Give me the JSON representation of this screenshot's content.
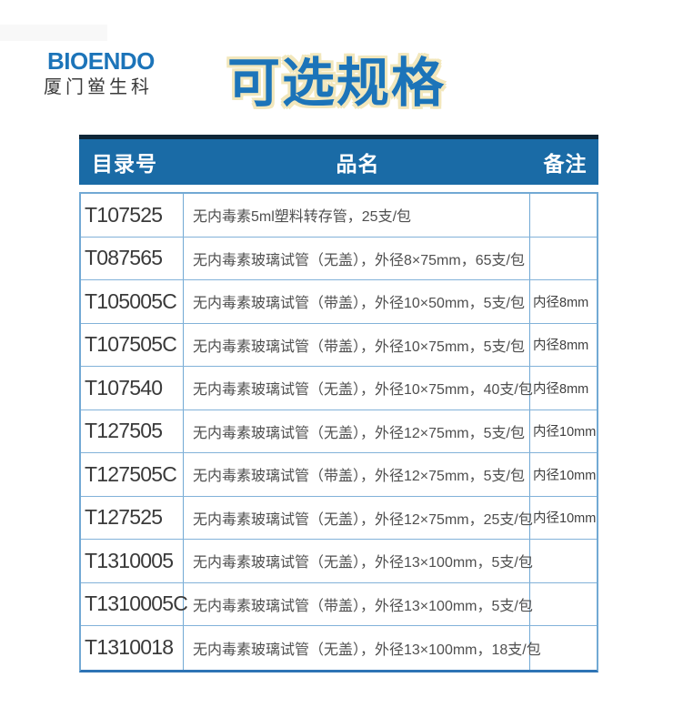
{
  "logo": {
    "brand": "BIOENDO",
    "subtitle": "厦门鲎生科"
  },
  "title": "可选规格",
  "table": {
    "headers": {
      "catalog": "目录号",
      "name": "品名",
      "remark": "备注"
    },
    "rows": [
      {
        "catalog": "T107525",
        "name": "无内毒素5ml塑料转存管，25支/包",
        "remark": ""
      },
      {
        "catalog": "T087565",
        "name": "无内毒素玻璃试管（无盖），外径8×75mm，65支/包",
        "remark": ""
      },
      {
        "catalog": "T105005C",
        "name": "无内毒素玻璃试管（带盖），外径10×50mm，5支/包",
        "remark": "内径8mm"
      },
      {
        "catalog": "T107505C",
        "name": "无内毒素玻璃试管（带盖），外径10×75mm，5支/包",
        "remark": "内径8mm"
      },
      {
        "catalog": "T107540",
        "name": "无内毒素玻璃试管（无盖），外径10×75mm，40支/包",
        "remark": "内径8mm"
      },
      {
        "catalog": "T127505",
        "name": "无内毒素玻璃试管（无盖），外径12×75mm，5支/包",
        "remark": "内径10mm"
      },
      {
        "catalog": "T127505C",
        "name": "无内毒素玻璃试管（带盖），外径12×75mm，5支/包",
        "remark": "内径10mm"
      },
      {
        "catalog": "T127525",
        "name": "无内毒素玻璃试管（无盖），外径12×75mm，25支/包",
        "remark": "内径10mm"
      },
      {
        "catalog": "T1310005",
        "name": "无内毒素玻璃试管（无盖），外径13×100mm，5支/包",
        "remark": ""
      },
      {
        "catalog": "T1310005C",
        "name": "无内毒素玻璃试管（带盖），外径13×100mm，5支/包",
        "remark": ""
      },
      {
        "catalog": "T1310018",
        "name": "无内毒素玻璃试管（无盖），外径13×100mm，18支/包",
        "remark": ""
      }
    ]
  },
  "colors": {
    "brand_blue": "#1c74b9",
    "title_blue": "#1c74b9",
    "title_outline_cream": "#f2e7bc",
    "header_bg": "#1a6ba6",
    "header_top_border": "#0e2638",
    "header_text": "#ffffff",
    "grid_border": "#72a9d4",
    "bottom_border": "#2e74b5",
    "catalog_text": "#3a3a3a",
    "name_text": "#4f4f4f"
  }
}
